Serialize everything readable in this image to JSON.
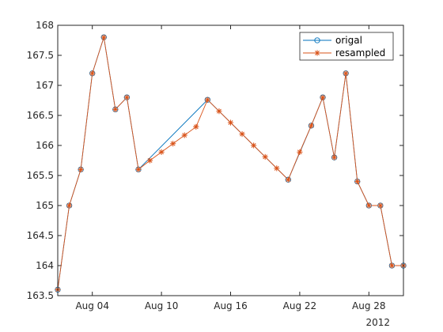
{
  "chart_data": {
    "type": "line",
    "title": "",
    "xlabel": "",
    "ylabel": "",
    "x_year_label": "2012",
    "xlim": [
      "2012-08-01",
      "2012-08-31"
    ],
    "ylim": [
      163.5,
      168
    ],
    "yticks": [
      163.5,
      164,
      164.5,
      165,
      165.5,
      166,
      166.5,
      167,
      167.5,
      168
    ],
    "ytick_labels": [
      "163.5",
      "164",
      "164.5",
      "165",
      "165.5",
      "166",
      "166.5",
      "167",
      "167.5",
      "168"
    ],
    "xticks": [
      "2012-08-04",
      "2012-08-10",
      "2012-08-16",
      "2012-08-22",
      "2012-08-28"
    ],
    "xtick_labels": [
      "Aug 04",
      "Aug 10",
      "Aug 16",
      "Aug 22",
      "Aug 28"
    ],
    "legend_position": "top-right",
    "series": [
      {
        "name": "origal",
        "color": "#0072BD",
        "marker": "circle",
        "x": [
          "2012-08-01",
          "2012-08-02",
          "2012-08-03",
          "2012-08-04",
          "2012-08-05",
          "2012-08-06",
          "2012-08-07",
          "2012-08-08",
          "2012-08-14",
          "2012-08-21",
          "2012-08-23",
          "2012-08-24",
          "2012-08-25",
          "2012-08-26",
          "2012-08-27",
          "2012-08-28",
          "2012-08-29",
          "2012-08-30",
          "2012-08-31"
        ],
        "values": [
          163.6,
          165.0,
          165.6,
          167.2,
          167.8,
          166.6,
          166.8,
          165.6,
          166.76,
          165.43,
          166.33,
          166.8,
          165.8,
          167.2,
          165.4,
          165.0,
          165.0,
          164.0,
          164.0
        ]
      },
      {
        "name": "resampled",
        "color": "#D95319",
        "marker": "asterisk",
        "x": [
          "2012-08-01",
          "2012-08-02",
          "2012-08-03",
          "2012-08-04",
          "2012-08-05",
          "2012-08-06",
          "2012-08-07",
          "2012-08-08",
          "2012-08-09",
          "2012-08-10",
          "2012-08-11",
          "2012-08-12",
          "2012-08-13",
          "2012-08-14",
          "2012-08-15",
          "2012-08-16",
          "2012-08-17",
          "2012-08-18",
          "2012-08-19",
          "2012-08-20",
          "2012-08-21",
          "2012-08-22",
          "2012-08-23",
          "2012-08-24",
          "2012-08-25",
          "2012-08-26",
          "2012-08-27",
          "2012-08-28",
          "2012-08-29",
          "2012-08-30",
          "2012-08-31"
        ],
        "values": [
          163.6,
          165.0,
          165.6,
          167.2,
          167.8,
          166.6,
          166.8,
          165.6,
          165.75,
          165.89,
          166.03,
          166.17,
          166.31,
          166.76,
          166.57,
          166.38,
          166.19,
          166.0,
          165.81,
          165.62,
          165.43,
          165.89,
          166.33,
          166.8,
          165.8,
          167.2,
          165.4,
          165.0,
          165.0,
          164.0,
          164.0
        ]
      }
    ]
  }
}
